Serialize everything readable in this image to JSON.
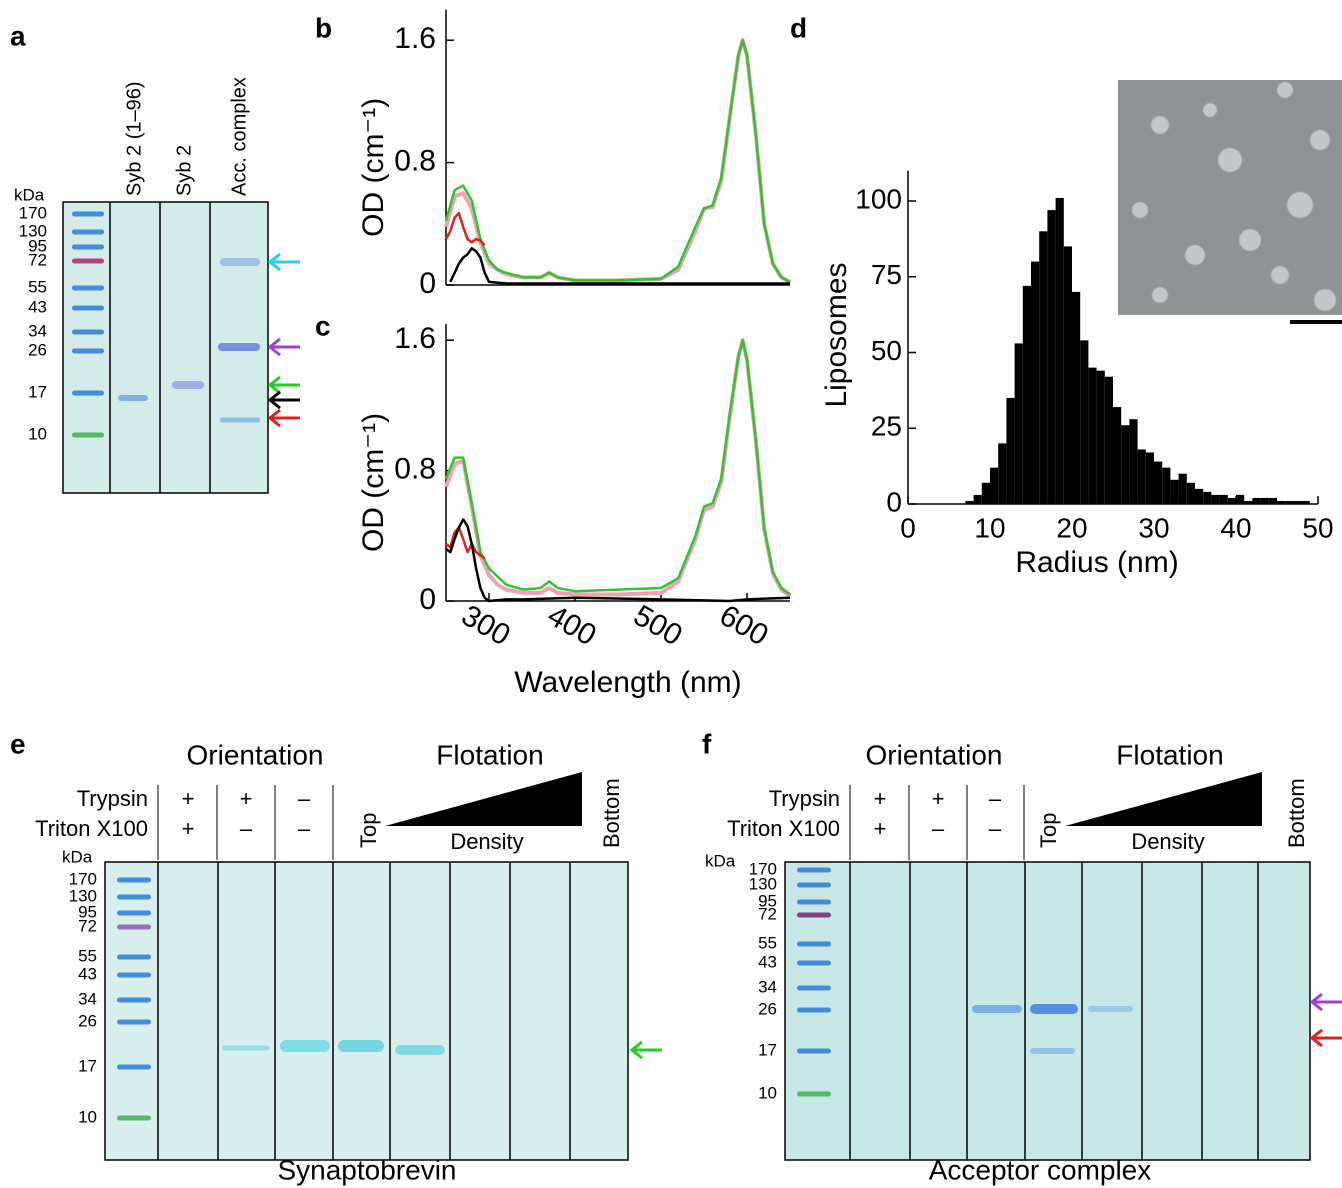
{
  "panels": {
    "a": {
      "label": "a",
      "kda_label": "kDa",
      "markers": [
        "170",
        "130",
        "95",
        "72",
        "55",
        "43",
        "34",
        "26",
        "17",
        "10"
      ],
      "lanes": [
        "Syb 2 (1–96)",
        "Syb 2",
        "Acc. complex"
      ]
    },
    "b": {
      "label": "b",
      "type": "line",
      "ylabel": "OD (cm⁻¹)",
      "xlim": [
        250,
        650
      ],
      "ylim": [
        0,
        1.8
      ],
      "yticks": [
        0,
        0.8,
        1.6
      ],
      "series": [
        {
          "color": "#2fc52f",
          "x": [
            250,
            260,
            270,
            280,
            290,
            300,
            310,
            320,
            340,
            360,
            370,
            380,
            400,
            450,
            500,
            520,
            540,
            550,
            560,
            570,
            580,
            590,
            595,
            600,
            610,
            620,
            630,
            640,
            650
          ],
          "values": [
            0.42,
            0.62,
            0.65,
            0.55,
            0.3,
            0.16,
            0.1,
            0.08,
            0.05,
            0.05,
            0.08,
            0.05,
            0.03,
            0.03,
            0.04,
            0.12,
            0.38,
            0.5,
            0.52,
            0.7,
            1.1,
            1.5,
            1.6,
            1.5,
            1.0,
            0.4,
            0.14,
            0.05,
            0.02
          ]
        },
        {
          "color": "#f2a0b4",
          "x": [
            250,
            260,
            270,
            280,
            290,
            300,
            310,
            320,
            340,
            360,
            370,
            380,
            400,
            450,
            500,
            520,
            540,
            550,
            560,
            570,
            580,
            590,
            595,
            600,
            610,
            620,
            630,
            640,
            650
          ],
          "values": [
            0.38,
            0.58,
            0.6,
            0.5,
            0.28,
            0.14,
            0.1,
            0.07,
            0.05,
            0.05,
            0.08,
            0.05,
            0.03,
            0.03,
            0.04,
            0.1,
            0.35,
            0.5,
            0.51,
            0.68,
            1.1,
            1.5,
            1.6,
            1.5,
            1.0,
            0.4,
            0.14,
            0.05,
            0.02
          ]
        },
        {
          "color": "#e02020",
          "x": [
            250,
            255,
            260,
            265,
            270,
            275,
            280,
            285,
            290,
            295
          ],
          "values": [
            0.3,
            0.35,
            0.44,
            0.47,
            0.38,
            0.3,
            0.28,
            0.3,
            0.29,
            0.26
          ]
        },
        {
          "color": "#000000",
          "x": [
            255,
            260,
            265,
            270,
            275,
            280,
            285,
            290,
            295,
            300,
            320,
            400,
            500,
            600,
            650
          ],
          "values": [
            0.02,
            0.08,
            0.14,
            0.18,
            0.2,
            0.24,
            0.22,
            0.18,
            0.08,
            0.02,
            0.01,
            0.01,
            0.01,
            0.01,
            0.01
          ]
        }
      ]
    },
    "c": {
      "label": "c",
      "type": "line",
      "ylabel": "OD (cm⁻¹)",
      "xlabel": "Wavelength (nm)",
      "xlim": [
        250,
        650
      ],
      "ylim": [
        0,
        1.7
      ],
      "yticks": [
        0,
        0.8,
        1.6
      ],
      "xticks": [
        300,
        400,
        500,
        600
      ],
      "series": [
        {
          "color": "#2fc52f",
          "x": [
            250,
            260,
            270,
            280,
            290,
            300,
            310,
            320,
            340,
            360,
            370,
            380,
            400,
            450,
            500,
            520,
            540,
            550,
            560,
            570,
            580,
            590,
            595,
            600,
            610,
            620,
            630,
            640,
            650
          ],
          "values": [
            0.75,
            0.88,
            0.88,
            0.6,
            0.3,
            0.2,
            0.15,
            0.1,
            0.07,
            0.08,
            0.12,
            0.08,
            0.06,
            0.07,
            0.08,
            0.14,
            0.4,
            0.58,
            0.6,
            0.75,
            1.15,
            1.5,
            1.6,
            1.48,
            1.0,
            0.45,
            0.18,
            0.08,
            0.04
          ]
        },
        {
          "color": "#f2a0b4",
          "x": [
            250,
            260,
            270,
            280,
            290,
            300,
            310,
            320,
            340,
            360,
            370,
            380,
            400,
            450,
            500,
            520,
            540,
            550,
            560,
            570,
            580,
            590,
            595,
            600,
            610,
            620,
            630,
            640,
            650
          ],
          "values": [
            0.7,
            0.84,
            0.86,
            0.58,
            0.28,
            0.16,
            0.1,
            0.07,
            0.05,
            0.05,
            0.08,
            0.05,
            0.04,
            0.04,
            0.05,
            0.12,
            0.38,
            0.56,
            0.58,
            0.73,
            1.13,
            1.5,
            1.6,
            1.48,
            1.0,
            0.44,
            0.17,
            0.07,
            0.03
          ]
        },
        {
          "color": "#e02020",
          "x": [
            250,
            255,
            260,
            265,
            270,
            275,
            280,
            285,
            290,
            295
          ],
          "values": [
            0.35,
            0.33,
            0.42,
            0.45,
            0.38,
            0.3,
            0.35,
            0.3,
            0.28,
            0.26
          ]
        },
        {
          "color": "#000000",
          "x": [
            250,
            255,
            260,
            265,
            270,
            275,
            280,
            285,
            290,
            295,
            300,
            320,
            340,
            400,
            500,
            580,
            600,
            650
          ],
          "values": [
            0.32,
            0.3,
            0.38,
            0.45,
            0.5,
            0.46,
            0.35,
            0.2,
            0.08,
            0.02,
            0,
            0.01,
            0.01,
            0.02,
            0.01,
            0,
            0.01,
            0.02
          ]
        }
      ]
    },
    "d": {
      "label": "d",
      "type": "histogram",
      "ylabel": "Liposomes",
      "xlabel": "Radius (nm)",
      "xlim": [
        0,
        50
      ],
      "ylim": [
        0,
        110
      ],
      "xticks": [
        0,
        10,
        20,
        30,
        40,
        50
      ],
      "yticks": [
        0,
        25,
        50,
        75,
        100
      ],
      "color": "#000000",
      "bins": [
        6,
        7,
        8,
        9,
        10,
        11,
        12,
        13,
        14,
        15,
        16,
        17,
        18,
        19,
        20,
        21,
        22,
        23,
        24,
        25,
        26,
        27,
        28,
        29,
        30,
        31,
        32,
        33,
        34,
        35,
        36,
        37,
        38,
        39,
        40,
        41,
        42,
        43,
        44,
        45,
        46,
        47,
        48,
        49,
        50
      ],
      "counts": [
        0,
        1,
        3,
        7,
        12,
        20,
        35,
        53,
        72,
        80,
        90,
        97,
        101,
        85,
        70,
        54,
        45,
        44,
        42,
        32,
        26,
        28,
        18,
        17,
        14,
        12,
        8,
        10,
        7,
        5,
        4,
        3,
        3,
        2,
        3,
        1,
        2,
        2,
        2,
        1,
        1,
        1,
        1,
        0
      ]
    },
    "e": {
      "label": "e",
      "kda_label": "kDa",
      "markers": [
        "170",
        "130",
        "95",
        "72",
        "55",
        "43",
        "34",
        "26",
        "17",
        "10"
      ],
      "orientation": "Orientation",
      "flotation": "Flotation",
      "rows": [
        "Trypsin",
        "Triton X100"
      ],
      "signs": [
        [
          "+",
          "+",
          "–"
        ],
        [
          "+",
          "–",
          "–"
        ]
      ],
      "top": "Top",
      "density": "Density",
      "bottom": "Bottom",
      "caption": "Synaptobrevin"
    },
    "f": {
      "label": "f",
      "kda_label": "kDa",
      "markers": [
        "170",
        "130",
        "95",
        "72",
        "55",
        "43",
        "34",
        "26",
        "17",
        "10"
      ],
      "orientation": "Orientation",
      "flotation": "Flotation",
      "rows": [
        "Trypsin",
        "Triton X100"
      ],
      "signs": [
        [
          "+",
          "+",
          "–"
        ],
        [
          "+",
          "–",
          "–"
        ]
      ],
      "top": "Top",
      "density": "Density",
      "bottom": "Bottom",
      "caption": "Acceptor complex"
    }
  }
}
